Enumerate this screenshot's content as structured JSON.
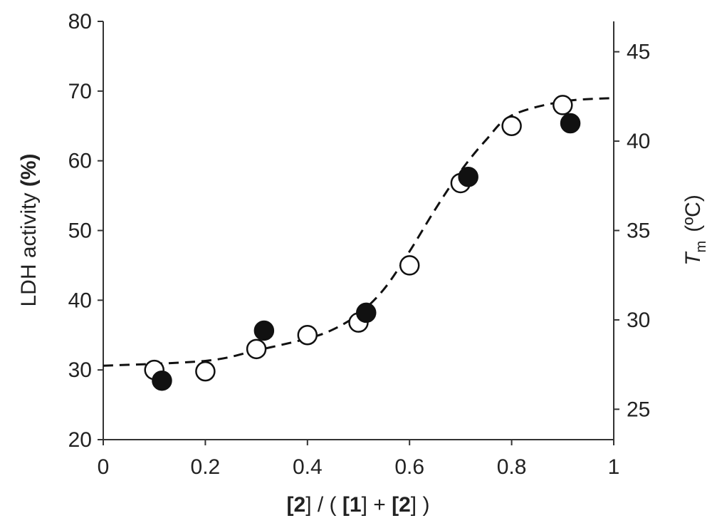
{
  "chart_data": {
    "type": "scatter",
    "xlabel": {
      "parts": [
        {
          "t": "[",
          "b": true
        },
        {
          "t": "2",
          "b": true
        },
        {
          "t": "] / ( ",
          "b": false
        },
        {
          "t": "[",
          "b": true
        },
        {
          "t": "1",
          "b": true
        },
        {
          "t": "] + ",
          "b": false
        },
        {
          "t": "[",
          "b": true
        },
        {
          "t": "2",
          "b": true
        },
        {
          "t": "] )",
          "b": false
        }
      ]
    },
    "ylabel": {
      "main": "LDH activity",
      "unit": "(%)"
    },
    "y2label": {
      "symbol": "T",
      "subscript": "m",
      "unit": "(ºC)"
    },
    "xlim": [
      0,
      1
    ],
    "ylim": [
      20,
      80
    ],
    "y2lim": [
      23.3,
      46.7
    ],
    "xticks": [
      "0",
      "0.2",
      "0.4",
      "0.6",
      "0.8",
      "1"
    ],
    "yticks": [
      "20",
      "30",
      "40",
      "50",
      "60",
      "70",
      "80"
    ],
    "y2ticks": [
      "25",
      "30",
      "35",
      "40",
      "45"
    ],
    "grid": false,
    "series": [
      {
        "marker": "open-circle",
        "axis": "left",
        "x": [
          0.1,
          0.2,
          0.3,
          0.4,
          0.5,
          0.6,
          0.7,
          0.8,
          0.9
        ],
        "y": [
          30,
          29.8,
          33,
          35,
          36.8,
          45,
          56.8,
          65,
          68
        ]
      },
      {
        "marker": "filled-circle",
        "axis": "right",
        "x": [
          0.115,
          0.315,
          0.515,
          0.715,
          0.915
        ],
        "y": [
          26.6,
          29.4,
          30.4,
          38.0,
          41.0
        ]
      },
      {
        "style": "dashed-line",
        "axis": "left",
        "x": [
          0,
          0.2,
          0.3,
          0.4,
          0.45,
          0.5,
          0.55,
          0.6,
          0.65,
          0.7,
          0.75,
          0.8,
          0.9,
          1.0
        ],
        "y": [
          30.6,
          31.3,
          32.8,
          34.5,
          35.8,
          38,
          41.6,
          47,
          53,
          58.5,
          63,
          66.5,
          68.5,
          69
        ]
      }
    ]
  },
  "colors": {
    "filled": "#111111",
    "open_fill": "#ffffff",
    "stroke": "#111111"
  }
}
